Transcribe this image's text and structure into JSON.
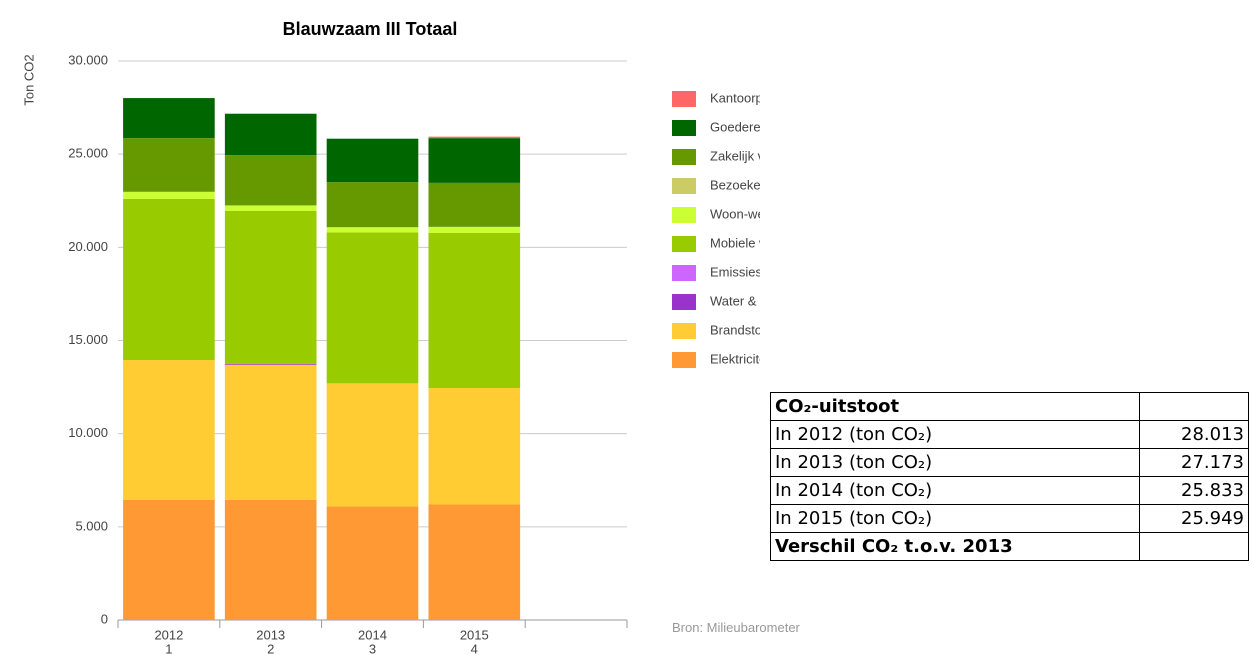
{
  "chart_data": {
    "type": "bar",
    "stacked": true,
    "title": "Blauwzaam III Totaal",
    "ylabel": "Ton CO2",
    "categories": [
      "2012",
      "2013",
      "2014",
      "2015",
      null
    ],
    "category_sublabels": [
      "1",
      "2",
      "3",
      "4",
      null
    ],
    "series": [
      {
        "name": "Kantoorpapier",
        "color": "#ff6666",
        "values": [
          0,
          0,
          0,
          80,
          null
        ]
      },
      {
        "name": "Goederenvervoer",
        "color": "#006600",
        "values": [
          2150,
          2220,
          2330,
          2400,
          null
        ]
      },
      {
        "name": "Zakelijk verkeer",
        "color": "#669900",
        "values": [
          2880,
          2700,
          2420,
          2360,
          null
        ]
      },
      {
        "name": "Bezoekersverkeer",
        "color": "#cccc66",
        "values": [
          0,
          0,
          0,
          0,
          null
        ]
      },
      {
        "name": "Woon-werkverkeer",
        "color": "#ccff33",
        "values": [
          380,
          300,
          280,
          330,
          null
        ]
      },
      {
        "name": "Mobiele werktuigen",
        "color": "#99cc00",
        "values": [
          8650,
          8200,
          8100,
          8320,
          null
        ]
      },
      {
        "name": "Emissies",
        "color": "#cc66ff",
        "values": [
          0,
          0,
          0,
          0,
          null
        ]
      },
      {
        "name": "Water & afvalwater",
        "color": "#9933cc",
        "values": [
          0,
          50,
          0,
          0,
          null
        ]
      },
      {
        "name": "Brandstof & warmte",
        "color": "#ffcc33",
        "values": [
          7500,
          7250,
          6600,
          6250,
          null
        ]
      },
      {
        "name": "Elektriciteit",
        "color": "#ff9933",
        "values": [
          6450,
          6450,
          6100,
          6200,
          null
        ]
      }
    ],
    "ylim": [
      0,
      30000
    ],
    "yticks": [
      0,
      {
        "value": 5000,
        "label": "5.000"
      },
      {
        "value": 10000,
        "label": "10.000"
      },
      {
        "value": 15000,
        "label": "15.000"
      },
      {
        "value": 20000,
        "label": "20.000"
      },
      {
        "value": 25000,
        "label": "25.000"
      },
      {
        "value": 30000,
        "label": "30.000"
      }
    ],
    "grid": true,
    "legend": "right"
  },
  "table": {
    "header": "CO₂-uitstoot",
    "rows": [
      [
        "In 2012 (ton CO₂)",
        "28.013"
      ],
      [
        "In 2013 (ton CO₂)",
        "27.173"
      ],
      [
        "In 2014 (ton CO₂)",
        "25.833"
      ],
      [
        "In 2015 (ton CO₂)",
        "25.949"
      ]
    ],
    "footer": "Verschil CO₂ t.o.v. 2013"
  },
  "source": "Bron: Milieubarometer"
}
